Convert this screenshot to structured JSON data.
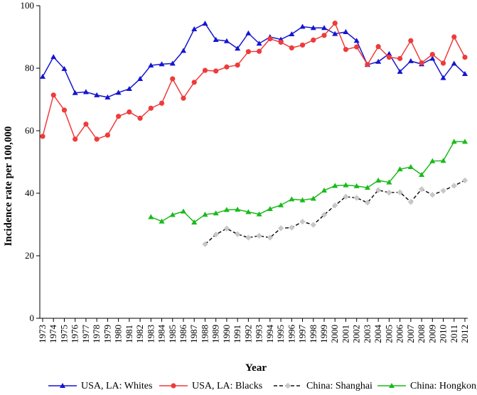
{
  "chart_data": {
    "type": "line",
    "title": "",
    "xlabel": "Year",
    "ylabel": "Incidence rate per 100,000",
    "ylim": [
      0,
      100
    ],
    "yticks": [
      0,
      20,
      40,
      60,
      80,
      100
    ],
    "x": [
      1973,
      1974,
      1975,
      1976,
      1977,
      1978,
      1979,
      1980,
      1981,
      1982,
      1983,
      1984,
      1985,
      1986,
      1987,
      1988,
      1989,
      1990,
      1991,
      1992,
      1993,
      1994,
      1995,
      1996,
      1997,
      1998,
      1999,
      2000,
      2001,
      2002,
      2003,
      2004,
      2005,
      2006,
      2007,
      2008,
      2009,
      2010,
      2011,
      2012
    ],
    "grid": false,
    "legend_position": "bottom",
    "series": [
      {
        "name": "USA, LA: Whites",
        "color": "#1515d0",
        "marker": "triangle",
        "line_style": "solid",
        "values": [
          77.3,
          83.6,
          79.8,
          72.1,
          72.4,
          71.4,
          70.7,
          72.2,
          73.4,
          76.6,
          80.9,
          81.3,
          81.5,
          85.6,
          92.5,
          94.3,
          89.1,
          88.7,
          86.3,
          91.2,
          87.9,
          90.0,
          89.2,
          90.9,
          93.3,
          92.9,
          92.9,
          91.0,
          91.6,
          88.8,
          81.1,
          82.1,
          84.6,
          78.9,
          82.3,
          81.3,
          83.1,
          76.9,
          81.5,
          78.2
        ]
      },
      {
        "name": "USA, LA: Blacks",
        "color": "#ee3b3b",
        "marker": "circle",
        "line_style": "solid",
        "values": [
          58.2,
          71.4,
          66.6,
          57.3,
          62.1,
          57.3,
          58.6,
          64.6,
          66.0,
          64.0,
          67.2,
          68.8,
          76.6,
          70.4,
          75.5,
          79.3,
          79.1,
          80.4,
          81.0,
          85.3,
          85.4,
          89.4,
          88.3,
          86.5,
          87.4,
          89.0,
          90.5,
          94.4,
          86.0,
          86.8,
          81.2,
          86.9,
          83.5,
          83.1,
          88.8,
          81.7,
          84.4,
          81.6,
          90.0,
          83.5
        ]
      },
      {
        "name": "China: Shanghai",
        "color": "#111111",
        "marker": "diamond",
        "line_style": "dashed",
        "values": [
          null,
          null,
          null,
          null,
          null,
          null,
          null,
          null,
          null,
          null,
          null,
          null,
          null,
          null,
          null,
          23.7,
          26.8,
          28.7,
          26.9,
          25.8,
          26.4,
          25.8,
          28.8,
          29.0,
          30.9,
          29.9,
          33.1,
          36.1,
          38.9,
          38.5,
          37.0,
          41.0,
          40.2,
          40.3,
          37.2,
          41.3,
          39.5,
          40.8,
          42.4,
          44.1
        ]
      },
      {
        "name": "China: Hongkong",
        "color": "#1aba1a",
        "marker": "triangle",
        "line_style": "solid",
        "values": [
          null,
          null,
          null,
          null,
          null,
          null,
          null,
          null,
          null,
          null,
          32.4,
          31.0,
          33.1,
          34.2,
          30.7,
          33.2,
          33.6,
          34.7,
          34.8,
          34.0,
          33.3,
          35.0,
          36.2,
          38.1,
          37.8,
          38.3,
          40.9,
          42.4,
          42.6,
          42.3,
          41.8,
          44.1,
          43.5,
          47.7,
          48.4,
          45.9,
          50.3,
          50.4,
          56.5,
          56.5
        ]
      }
    ]
  }
}
